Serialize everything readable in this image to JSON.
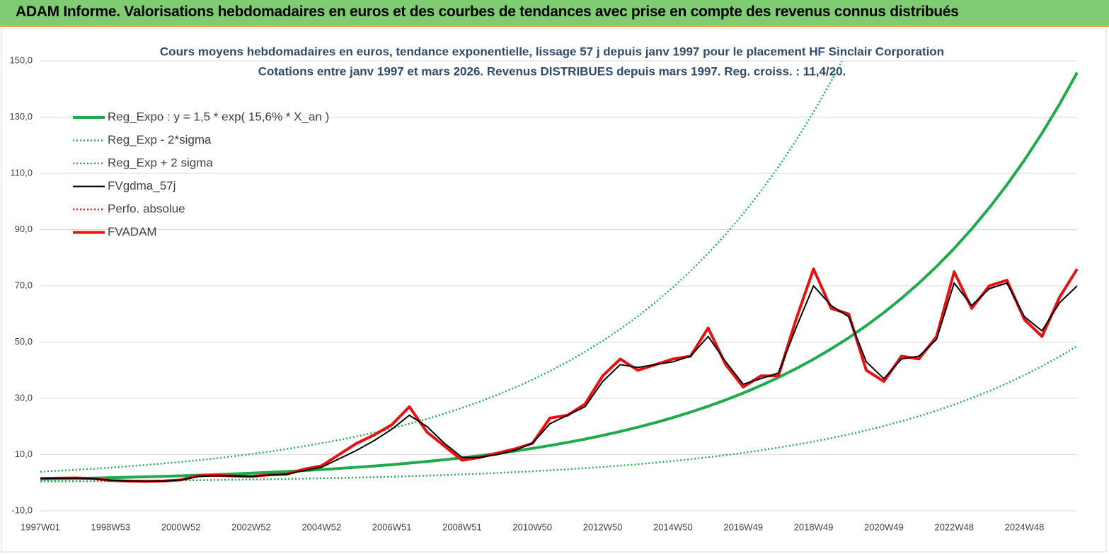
{
  "chart_data": {
    "type": "line",
    "header": "ADAM Informe. Valorisations hebdomadaires en euros et des courbes de tendances avec prise en compte des revenus connus distribués",
    "title": "Cours moyens hebdomadaires en euros, tendance exponentielle, lissage 57 j depuis janv 1997 pour le placement HF Sinclair Corporation",
    "subtitle": "Cotations entre janv 1997 et mars 2026. Revenus DISTRIBUES depuis mars 1997. Reg. croiss. : 11,4/20.",
    "categories": [
      "1997W01",
      null,
      null,
      null,
      "1998W53",
      null,
      null,
      null,
      "2000W52",
      null,
      null,
      null,
      "2002W52",
      null,
      null,
      null,
      "2004W52",
      null,
      null,
      null,
      "2006W51",
      null,
      null,
      null,
      "2008W51",
      null,
      null,
      null,
      "2010W50",
      null,
      null,
      null,
      "2012W50",
      null,
      null,
      null,
      "2014W50",
      null,
      null,
      null,
      "2016W49",
      null,
      null,
      null,
      "2018W49",
      null,
      null,
      null,
      "2020W49",
      null,
      null,
      null,
      "2022W48",
      null,
      null,
      null,
      "2024W48",
      null,
      null,
      null
    ],
    "ylim": [
      -10,
      150
    ],
    "yticks": [
      {
        "value": -10,
        "label": "-10,0"
      },
      {
        "value": 10,
        "label": "10,0"
      },
      {
        "value": 30,
        "label": "30,0"
      },
      {
        "value": 50,
        "label": "50,0"
      },
      {
        "value": 70,
        "label": "70,0"
      },
      {
        "value": 90,
        "label": "90,0"
      },
      {
        "value": 110,
        "label": "110,0"
      },
      {
        "value": 130,
        "label": "130,0"
      },
      {
        "value": 150,
        "label": "150,0"
      }
    ],
    "grid": true,
    "legend": "top-left",
    "series": [
      {
        "name": "Reg_Expo : y = 1,5 * exp( 15,6% *  X_an )",
        "color": "#1faa4b",
        "line_style": "thick",
        "values": [
          1.3,
          1.41,
          1.53,
          1.65,
          1.79,
          1.94,
          2.1,
          2.28,
          2.46,
          2.67,
          2.89,
          3.13,
          3.4,
          3.68,
          3.98,
          4.32,
          4.68,
          5.06,
          5.49,
          5.94,
          6.44,
          6.98,
          7.56,
          8.19,
          8.87,
          9.61,
          10.41,
          11.27,
          12.21,
          13.23,
          14.33,
          15.52,
          16.82,
          18.22,
          19.73,
          21.38,
          23.16,
          25.09,
          27.18,
          29.44,
          31.89,
          34.55,
          37.43,
          40.54,
          43.92,
          47.58,
          51.54,
          55.83,
          60.48,
          65.52,
          70.98,
          76.89,
          83.29,
          90.23,
          97.75,
          105.89,
          114.71,
          124.26,
          134.61,
          145.82
        ]
      },
      {
        "name": "Reg_Exp - 2*sigma",
        "color": "#22b04f",
        "line_style": "dotted",
        "values": [
          0.43,
          0.47,
          0.51,
          0.55,
          0.6,
          0.65,
          0.7,
          0.76,
          0.82,
          0.89,
          0.96,
          1.04,
          1.13,
          1.23,
          1.33,
          1.44,
          1.56,
          1.69,
          1.83,
          1.98,
          2.15,
          2.33,
          2.52,
          2.73,
          2.96,
          3.2,
          3.47,
          3.76,
          4.07,
          4.41,
          4.78,
          5.17,
          5.61,
          6.07,
          6.58,
          7.13,
          7.72,
          8.36,
          9.06,
          9.81,
          10.63,
          11.52,
          12.48,
          13.51,
          14.64,
          15.86,
          17.18,
          18.61,
          20.16,
          21.84,
          23.66,
          25.63,
          27.76,
          30.08,
          32.58,
          35.3,
          38.24,
          41.42,
          44.87,
          48.61
        ]
      },
      {
        "name": "Reg_Exp + 2 sigma",
        "color": "#22b04f",
        "line_style": "dotted",
        "values": [
          3.9,
          4.23,
          4.59,
          4.95,
          5.37,
          5.82,
          6.3,
          6.84,
          7.38,
          8.01,
          8.67,
          9.39,
          10.2,
          11.04,
          11.94,
          12.96,
          14.04,
          15.18,
          16.47,
          17.82,
          19.32,
          20.94,
          22.68,
          24.57,
          26.61,
          28.83,
          31.23,
          33.81,
          36.63,
          39.69,
          42.99,
          46.56,
          50.46,
          54.66,
          59.19,
          64.14,
          69.48,
          75.27,
          81.54,
          88.32,
          95.67,
          103.65,
          112.29,
          121.62,
          131.76,
          142.74,
          154.62,
          null,
          null,
          null,
          null,
          null,
          null,
          null,
          null,
          null,
          null,
          null,
          null,
          null
        ]
      },
      {
        "name": "FVgdma_57j",
        "color": "#000000",
        "line_style": "thin",
        "values": [
          1.5,
          1.6,
          1.6,
          1.4,
          0.9,
          0.6,
          0.5,
          0.6,
          1.0,
          2.2,
          2.5,
          2.4,
          2.3,
          2.7,
          3.0,
          4.3,
          5.5,
          8.5,
          11.5,
          15,
          19,
          24,
          20,
          14,
          9,
          9,
          10,
          11.5,
          14,
          21,
          24,
          27,
          36,
          42,
          41,
          42,
          43,
          45,
          52,
          43,
          35,
          37,
          39,
          55,
          70,
          63,
          59,
          43,
          37,
          44,
          45,
          51,
          71,
          63,
          69,
          71,
          59,
          54,
          64,
          70
        ]
      },
      {
        "name": "Perfo. absolue",
        "color": "#dd1111",
        "line_style": "dotted",
        "values": [
          1.5,
          1.6,
          1.7,
          1.5,
          0.8,
          0.6,
          0.5,
          0.6,
          1.0,
          2.5,
          2.6,
          2.4,
          2.2,
          2.8,
          3.0,
          4.8,
          6,
          10,
          14,
          17,
          20.6,
          27,
          18,
          13,
          8,
          9,
          10.5,
          12,
          14,
          23,
          24,
          28,
          38,
          44,
          40,
          42,
          44,
          45,
          55,
          42,
          34,
          38,
          38,
          58,
          76,
          62,
          60,
          40,
          36,
          45,
          44,
          52,
          75,
          62,
          70,
          72,
          58,
          52,
          66,
          76
        ]
      },
      {
        "name": "FVADAM",
        "color": "#ee1111",
        "line_style": "thick",
        "values": [
          1.5,
          1.6,
          1.7,
          1.5,
          0.8,
          0.6,
          0.5,
          0.6,
          1.0,
          2.5,
          2.6,
          2.4,
          2.2,
          2.8,
          3.0,
          4.8,
          6,
          10,
          14,
          17,
          20.6,
          27,
          18,
          13,
          8,
          9,
          10.5,
          12,
          14,
          23,
          24,
          28,
          38,
          44,
          40,
          42,
          44,
          45,
          55,
          42,
          34,
          38,
          38,
          58,
          76,
          62,
          60,
          40,
          36,
          45,
          44,
          52,
          75,
          62,
          70,
          72,
          58,
          52,
          66,
          76
        ]
      }
    ]
  }
}
